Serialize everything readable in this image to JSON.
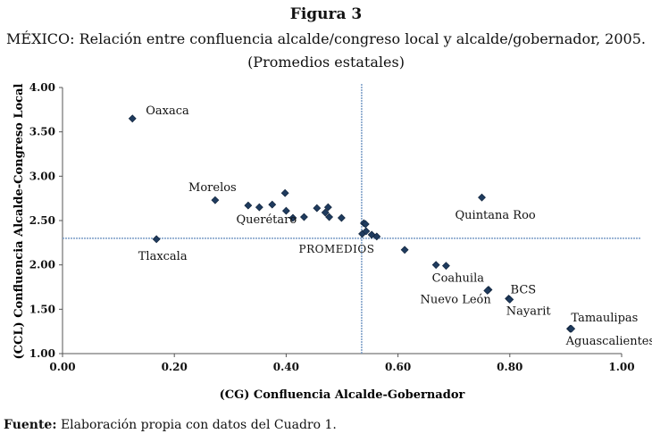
{
  "figure_label": "Figura 3",
  "title": "MÉXICO: Relación entre confluencia alcalde/congreso local y alcalde/gobernador, 2005.",
  "subtitle": "(Promedios estatales)",
  "source_prefix": "Fuente:",
  "source_text": " Elaboración propia con datos del Cuadro 1.",
  "chart_data": {
    "type": "scatter",
    "xlabel": "(CG) Confluencia Alcalde-Gobernador",
    "ylabel": "(CCL) Confluencia Alcalde-Congreso Local",
    "xlim": [
      0,
      1
    ],
    "ylim": [
      1,
      4
    ],
    "xticks": [
      "0.00",
      "0.20",
      "0.40",
      "0.60",
      "0.80",
      "1.00"
    ],
    "yticks": [
      "1.00",
      "1.50",
      "2.00",
      "2.50",
      "3.00",
      "3.50",
      "4.00"
    ],
    "grid": false,
    "marker_color": "#1f3b5e",
    "reference_line_color": "#7a9cc6",
    "reference_lines": {
      "x": 0.535,
      "y": 2.3,
      "label": "PROMEDIOS"
    },
    "points": [
      {
        "x": 0.125,
        "y": 3.65,
        "label": "Oaxaca"
      },
      {
        "x": 0.168,
        "y": 2.29,
        "label": "Tlaxcala"
      },
      {
        "x": 0.273,
        "y": 2.73,
        "label": "Morelos"
      },
      {
        "x": 0.332,
        "y": 2.67,
        "label": ""
      },
      {
        "x": 0.352,
        "y": 2.65,
        "label": "Querétaro"
      },
      {
        "x": 0.375,
        "y": 2.68,
        "label": ""
      },
      {
        "x": 0.398,
        "y": 2.81,
        "label": ""
      },
      {
        "x": 0.4,
        "y": 2.61,
        "label": ""
      },
      {
        "x": 0.412,
        "y": 2.53,
        "label": ""
      },
      {
        "x": 0.432,
        "y": 2.54,
        "label": ""
      },
      {
        "x": 0.455,
        "y": 2.64,
        "label": ""
      },
      {
        "x": 0.47,
        "y": 2.59,
        "label": ""
      },
      {
        "x": 0.475,
        "y": 2.65,
        "label": ""
      },
      {
        "x": 0.477,
        "y": 2.54,
        "label": ""
      },
      {
        "x": 0.499,
        "y": 2.53,
        "label": ""
      },
      {
        "x": 0.536,
        "y": 2.35,
        "label": ""
      },
      {
        "x": 0.539,
        "y": 2.47,
        "label": ""
      },
      {
        "x": 0.543,
        "y": 2.38,
        "label": ""
      },
      {
        "x": 0.542,
        "y": 2.46,
        "label": ""
      },
      {
        "x": 0.553,
        "y": 2.34,
        "label": ""
      },
      {
        "x": 0.562,
        "y": 2.32,
        "label": ""
      },
      {
        "x": 0.612,
        "y": 2.17,
        "label": ""
      },
      {
        "x": 0.668,
        "y": 2.0,
        "label": ""
      },
      {
        "x": 0.686,
        "y": 1.99,
        "label": ""
      },
      {
        "x": 0.75,
        "y": 2.76,
        "label": "Quintana Roo"
      },
      {
        "x": 0.762,
        "y": 1.72,
        "label": "Coahuila"
      },
      {
        "x": 0.76,
        "y": 1.71,
        "label": "Nuevo León"
      },
      {
        "x": 0.798,
        "y": 1.62,
        "label": "BCS"
      },
      {
        "x": 0.8,
        "y": 1.61,
        "label": "Nayarit"
      },
      {
        "x": 0.908,
        "y": 1.28,
        "label": "Tamaulipas"
      },
      {
        "x": 0.91,
        "y": 1.28,
        "label": "Aguascalientes"
      }
    ]
  }
}
